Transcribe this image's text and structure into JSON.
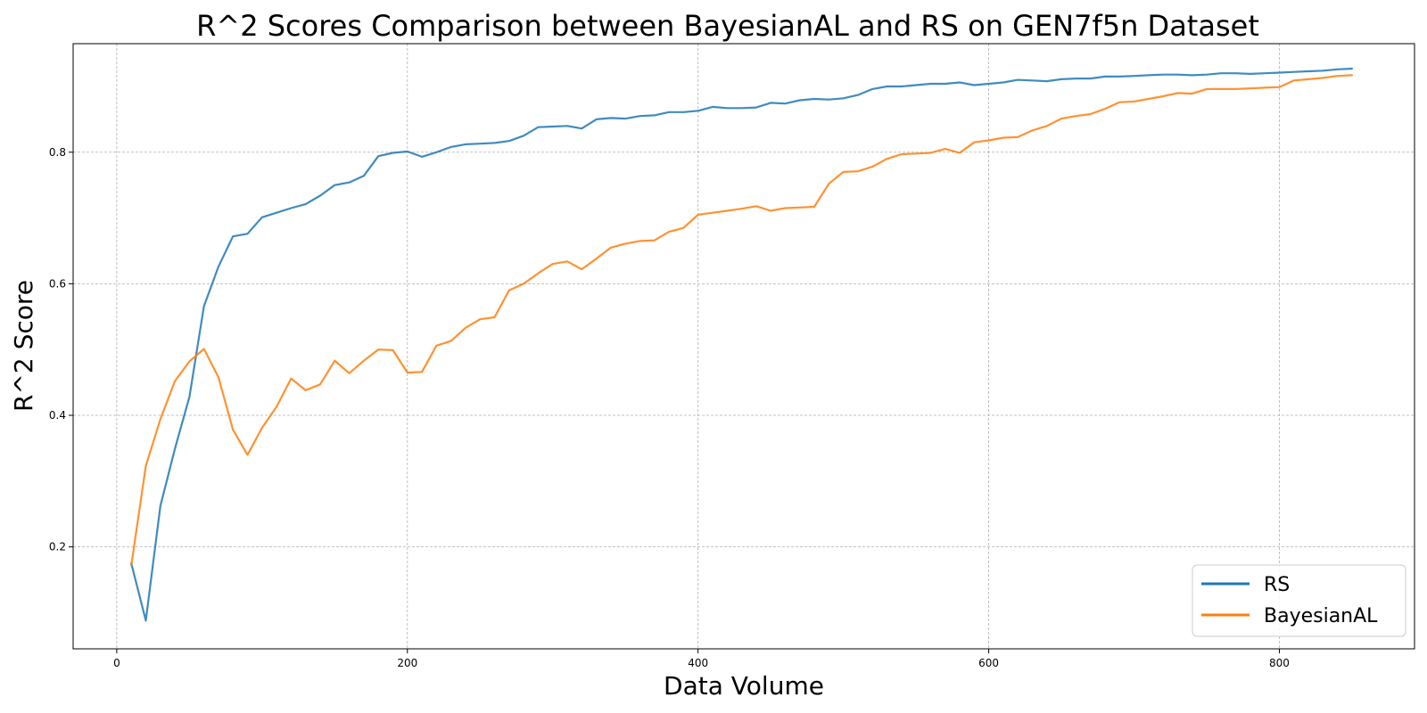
{
  "chart_data": {
    "type": "line",
    "title": "R^2 Scores Comparison between BayesianAL and RS on GEN7f5n Dataset",
    "xlabel": "Data Volume",
    "ylabel": "R^2 Score",
    "xlim": [
      -30,
      893
    ],
    "ylim": [
      0.045,
      0.965
    ],
    "xticks": [
      0,
      200,
      400,
      600,
      800
    ],
    "yticks": [
      0.2,
      0.4,
      0.6,
      0.8
    ],
    "xtick_labels": [
      "0",
      "200",
      "400",
      "600",
      "800"
    ],
    "ytick_labels": [
      "0.2",
      "0.4",
      "0.6",
      "0.8"
    ],
    "grid": true,
    "legend_position": "bottom-right",
    "x": [
      10,
      20,
      30,
      40,
      50,
      60,
      70,
      80,
      90,
      100,
      110,
      120,
      130,
      140,
      150,
      160,
      170,
      180,
      190,
      200,
      210,
      220,
      230,
      240,
      250,
      260,
      270,
      280,
      290,
      300,
      310,
      320,
      330,
      340,
      350,
      360,
      370,
      380,
      390,
      400,
      410,
      420,
      430,
      440,
      450,
      460,
      470,
      480,
      490,
      500,
      510,
      520,
      530,
      540,
      550,
      560,
      570,
      580,
      590,
      600,
      610,
      620,
      630,
      640,
      650,
      660,
      670,
      680,
      690,
      700,
      710,
      720,
      730,
      740,
      750,
      760,
      770,
      780,
      790,
      800,
      810,
      820,
      830,
      840,
      850
    ],
    "series": [
      {
        "name": "RS",
        "color": "#1f77b4",
        "values": [
          0.175,
          0.088,
          0.262,
          0.349,
          0.428,
          0.566,
          0.626,
          0.672,
          0.676,
          0.701,
          0.708,
          0.715,
          0.721,
          0.734,
          0.75,
          0.754,
          0.764,
          0.794,
          0.799,
          0.801,
          0.793,
          0.8,
          0.808,
          0.812,
          0.813,
          0.814,
          0.817,
          0.825,
          0.838,
          0.839,
          0.84,
          0.836,
          0.85,
          0.852,
          0.851,
          0.855,
          0.856,
          0.861,
          0.861,
          0.863,
          0.869,
          0.867,
          0.867,
          0.868,
          0.875,
          0.874,
          0.879,
          0.881,
          0.88,
          0.882,
          0.887,
          0.896,
          0.9,
          0.9,
          0.902,
          0.904,
          0.904,
          0.906,
          0.902,
          0.904,
          0.906,
          0.91,
          0.909,
          0.908,
          0.911,
          0.912,
          0.912,
          0.915,
          0.915,
          0.916,
          0.917,
          0.918,
          0.918,
          0.917,
          0.918,
          0.92,
          0.92,
          0.919,
          0.92,
          0.921,
          0.922,
          0.923,
          0.924,
          0.926,
          0.927
        ]
      },
      {
        "name": "BayesianAL",
        "color": "#ff7f0e",
        "values": [
          0.172,
          0.323,
          0.394,
          0.452,
          0.482,
          0.501,
          0.458,
          0.378,
          0.34,
          0.381,
          0.413,
          0.456,
          0.438,
          0.447,
          0.483,
          0.464,
          0.483,
          0.5,
          0.499,
          0.465,
          0.466,
          0.506,
          0.513,
          0.533,
          0.546,
          0.549,
          0.59,
          0.6,
          0.616,
          0.63,
          0.634,
          0.622,
          0.638,
          0.655,
          0.661,
          0.665,
          0.666,
          0.679,
          0.685,
          0.705,
          0.708,
          0.711,
          0.714,
          0.718,
          0.711,
          0.715,
          0.716,
          0.717,
          0.752,
          0.77,
          0.771,
          0.778,
          0.79,
          0.797,
          0.798,
          0.799,
          0.805,
          0.799,
          0.815,
          0.818,
          0.822,
          0.823,
          0.833,
          0.84,
          0.851,
          0.855,
          0.858,
          0.866,
          0.876,
          0.877,
          0.881,
          0.885,
          0.89,
          0.889,
          0.896,
          0.896,
          0.896,
          0.897,
          0.898,
          0.899,
          0.909,
          0.911,
          0.913,
          0.916,
          0.917
        ]
      }
    ]
  }
}
